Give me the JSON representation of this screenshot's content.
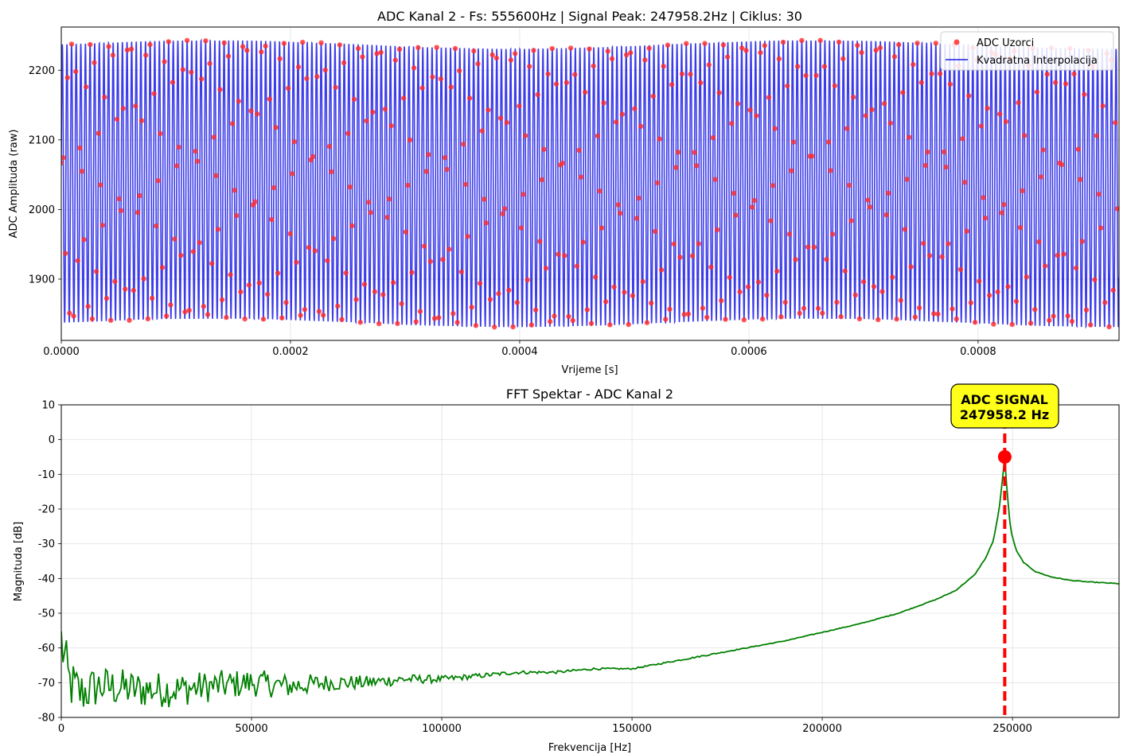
{
  "chart_data": [
    {
      "type": "line",
      "title": "ADC Kanal 2 - Fs: 555600Hz | Signal Peak: 247958.2Hz | Ciklus: 30",
      "xlabel": "Vrijeme [s]",
      "ylabel": "ADC Amplituda (raw)",
      "xlim": [
        0,
        0.000923
      ],
      "ylim": [
        1812,
        2262
      ],
      "xticks": [
        "0.0000",
        "0.0002",
        "0.0004",
        "0.0006",
        "0.0008"
      ],
      "xtick_values": [
        0,
        0.0002,
        0.0004,
        0.0006,
        0.0008
      ],
      "yticks": [
        "1900",
        "2000",
        "2100",
        "2200"
      ],
      "ytick_values": [
        1900,
        2000,
        2100,
        2200
      ],
      "grid": true,
      "legend_placement": "upper right",
      "signal": {
        "sample_rate_hz": 555600,
        "frequency_hz": 247958.2,
        "offset": 2037,
        "amplitude": 200,
        "sample_count": 513
      },
      "series": [
        {
          "name": "ADC Uzorci",
          "kind": "scatter",
          "color": "#ff2a2a"
        },
        {
          "name": "Kvadratna Interpolacija",
          "kind": "line",
          "color": "#1a1ae6"
        }
      ]
    },
    {
      "type": "line",
      "title": "FFT Spektar - ADC Kanal 2",
      "xlabel": "Frekvencija [Hz]",
      "ylabel": "Magnituda [dB]",
      "xlim": [
        0,
        278000
      ],
      "ylim": [
        -80,
        10
      ],
      "xticks": [
        "0",
        "50000",
        "100000",
        "150000",
        "200000",
        "250000"
      ],
      "xtick_values": [
        0,
        50000,
        100000,
        150000,
        200000,
        250000
      ],
      "yticks": [
        "-80",
        "-70",
        "-60",
        "-50",
        "-40",
        "-30",
        "-20",
        "-10",
        "0",
        "10"
      ],
      "ytick_values": [
        -80,
        -70,
        -60,
        -50,
        -40,
        -30,
        -20,
        -10,
        0,
        10
      ],
      "grid": true,
      "series": [
        {
          "name": "",
          "color": "#008000",
          "x": [
            0,
            2000,
            5000,
            10000,
            20000,
            30000,
            40000,
            50000,
            60000,
            70000,
            80000,
            90000,
            100000,
            110000,
            120000,
            130000,
            140000,
            150000,
            160000,
            170000,
            180000,
            190000,
            200000,
            210000,
            220000,
            230000,
            235000,
            240000,
            243000,
            245000,
            246500,
            247500,
            247958,
            248500,
            249500,
            251000,
            253000,
            256000,
            260000,
            265000,
            270000,
            275000,
            278000
          ],
          "y": [
            -58,
            -70,
            -73,
            -71,
            -72,
            -72,
            -71,
            -70,
            -71,
            -70,
            -70,
            -69,
            -69,
            -68,
            -67,
            -67,
            -66,
            -66,
            -64,
            -62,
            -60,
            -58,
            -55.5,
            -53,
            -50,
            -46,
            -43.5,
            -39,
            -34,
            -29,
            -20,
            -10,
            -5,
            -14,
            -26,
            -32,
            -35.5,
            -38,
            -39.5,
            -40.5,
            -41,
            -41.3,
            -41.5
          ],
          "noise_db": [
            9,
            8,
            7,
            6,
            5.5,
            5,
            4.5,
            4,
            3.5,
            2.5,
            2,
            1.5,
            1,
            0.7,
            0.5,
            0.4,
            0.3,
            0.2,
            0.2,
            0.2,
            0.1,
            0.1,
            0.1,
            0.1,
            0.1,
            0.1,
            0.1,
            0.1,
            0.1,
            0.1,
            0,
            0,
            0,
            0,
            0,
            0.1,
            0.1,
            0.1,
            0.1,
            0.1,
            0.1,
            0.1,
            0.1
          ]
        }
      ],
      "peak": {
        "x": 247958.2,
        "y": -5,
        "color": "#ff0000"
      },
      "annotation": {
        "line1": "ADC SIGNAL",
        "line2": "247958.2 Hz",
        "background": "#ffff1a"
      }
    }
  ]
}
